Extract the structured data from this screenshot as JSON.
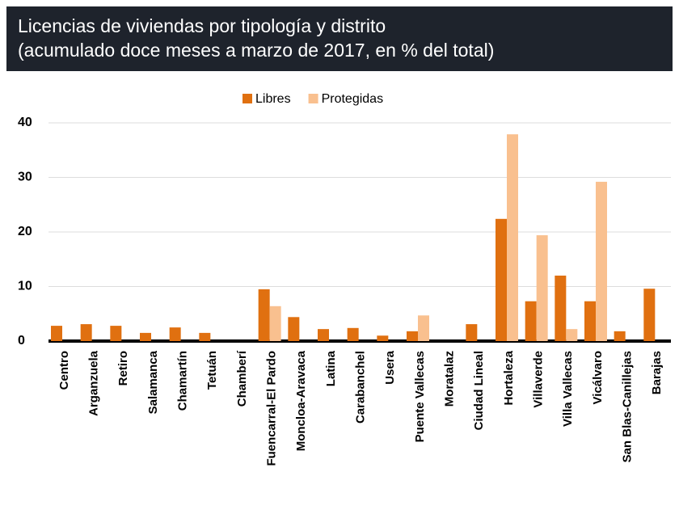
{
  "chart_data": {
    "type": "bar",
    "title": "Licencias de viviendas por tipología y distrito",
    "subtitle": "(acumulado doce meses a marzo de 2017, en % del total)",
    "categories": [
      "Centro",
      "Arganzuela",
      "Retiro",
      "Salamanca",
      "Chamartín",
      "Tetuán",
      "Chamberí",
      "Fuencarral-El Pardo",
      "Moncloa-Aravaca",
      "Latina",
      "Carabanchel",
      "Usera",
      "Puente Vallecas",
      "Moratalaz",
      "Ciudad Lineal",
      "Hortaleza",
      "Villaverde",
      "Villa Vallecas",
      "Vicálvaro",
      "San Blas-Canillejas",
      "Barajas"
    ],
    "series": [
      {
        "name": "Libres",
        "color": "#e07010",
        "values": [
          2.8,
          3.1,
          2.8,
          1.5,
          2.5,
          1.5,
          0,
          9.5,
          4.4,
          2.2,
          2.4,
          1.0,
          1.8,
          0,
          3.1,
          22.4,
          7.3,
          12.0,
          7.3,
          1.8,
          9.6
        ]
      },
      {
        "name": "Protegidas",
        "color": "#f9c08f",
        "values": [
          0,
          0,
          0,
          0,
          0,
          0,
          0,
          6.4,
          0,
          0,
          0,
          0,
          4.7,
          0,
          0,
          37.9,
          19.4,
          2.2,
          29.2,
          0,
          0
        ]
      }
    ],
    "ylim": [
      0,
      40
    ],
    "yticks": [
      0,
      10,
      20,
      30,
      40
    ],
    "grid": true,
    "legend": "top"
  }
}
